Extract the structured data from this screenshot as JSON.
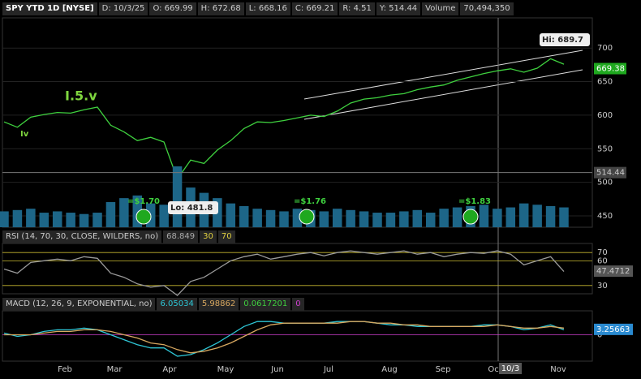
{
  "header": {
    "symbol": "SPY YTD 1D [NYSE]",
    "items": [
      "D: 10/3/25",
      "O: 669.99",
      "H: 672.68",
      "L: 668.16",
      "C: 669.21",
      "R: 4.51",
      "Y: 514.44"
    ],
    "volume_label": "Volume",
    "volume_value": "70,494,350"
  },
  "chart_data": [
    {
      "type": "line",
      "series": [
        {
          "name": "SPY",
          "color": "#3fd13f",
          "values": [
            590,
            582,
            597,
            601,
            604,
            603,
            608,
            612,
            585,
            575,
            562,
            567,
            560,
            505,
            533,
            528,
            548,
            562,
            580,
            590,
            589,
            592,
            596,
            600,
            598,
            606,
            618,
            624,
            626,
            630,
            632,
            638,
            642,
            645,
            652,
            657,
            662,
            666,
            669,
            664,
            670,
            684,
            676
          ]
        },
        {
          "name": "Volume",
          "color": "#1d6688",
          "axis": "volume",
          "values": [
            60000000,
            65000000,
            70000000,
            55000000,
            60000000,
            55000000,
            50000000,
            55000000,
            95000000,
            110000000,
            120000000,
            90000000,
            85000000,
            230000000,
            150000000,
            130000000,
            110000000,
            90000000,
            80000000,
            70000000,
            65000000,
            60000000,
            70000000,
            65000000,
            60000000,
            70000000,
            65000000,
            60000000,
            55000000,
            55000000,
            60000000,
            65000000,
            55000000,
            70000000,
            75000000,
            80000000,
            85000000,
            70000000,
            75000000,
            90000000,
            85000000,
            80000000,
            75000000
          ]
        }
      ],
      "ylim": [
        433,
        745
      ],
      "yticks": [
        450,
        500,
        550,
        600,
        650,
        700
      ],
      "x_labels": [
        "Feb",
        "Mar",
        "Apr",
        "May",
        "Jun",
        "Jul",
        "Aug",
        "Sep",
        "Oct",
        "Nov"
      ],
      "annotations": [
        "Hi: 689.7",
        "Lo: 481.8",
        "=$1.70",
        "=$1.76",
        "=$1.83",
        "I.5.v",
        "Iv"
      ],
      "last_price": 669.38,
      "crosshair_price": 514.44,
      "cursor_date": "10/3"
    },
    {
      "type": "line",
      "title": "RSI (14, 70, 30, CLOSE, WILDERS, no)",
      "readouts": [
        68.849,
        30,
        70
      ],
      "series": [
        {
          "color": "#9a9a9a",
          "values": [
            50,
            45,
            58,
            60,
            62,
            60,
            65,
            63,
            45,
            40,
            32,
            28,
            30,
            18,
            35,
            40,
            50,
            60,
            65,
            68,
            62,
            65,
            68,
            70,
            66,
            70,
            72,
            70,
            68,
            70,
            72,
            68,
            70,
            65,
            68,
            70,
            69,
            72,
            68,
            55,
            60,
            65,
            47
          ]
        }
      ],
      "ylim": [
        20,
        81
      ],
      "yticks": [
        30,
        60,
        70
      ],
      "last_value": 47.4712
    },
    {
      "type": "line",
      "title": "MACD (12, 26, 9, EXPONENTIAL, no)",
      "readouts": [
        6.05034,
        5.98862,
        0.0617201,
        0
      ],
      "series": [
        {
          "color": "#2ec6d6",
          "values": [
            1,
            -1,
            0,
            2,
            3,
            3,
            4,
            3,
            0,
            -3,
            -6,
            -8,
            -8,
            -13,
            -12,
            -9,
            -5,
            0,
            5,
            8,
            8,
            7,
            7,
            7,
            7,
            8,
            8,
            8,
            7,
            6,
            6,
            5,
            5,
            5,
            5,
            5,
            6,
            6,
            5,
            3,
            4,
            6,
            3
          ]
        },
        {
          "color": "#d8a860",
          "values": [
            0,
            0,
            0,
            1,
            2,
            2,
            3,
            3,
            2,
            0,
            -2,
            -5,
            -6,
            -9,
            -11,
            -10,
            -8,
            -5,
            -1,
            3,
            6,
            7,
            7,
            7,
            7,
            7,
            8,
            8,
            7,
            7,
            6,
            6,
            5,
            5,
            5,
            5,
            5,
            6,
            5,
            4,
            4,
            5,
            4
          ]
        }
      ],
      "ylim": [
        -16,
        14.5
      ],
      "yticks": [
        0
      ],
      "last_value": 3.25663
    }
  ]
}
